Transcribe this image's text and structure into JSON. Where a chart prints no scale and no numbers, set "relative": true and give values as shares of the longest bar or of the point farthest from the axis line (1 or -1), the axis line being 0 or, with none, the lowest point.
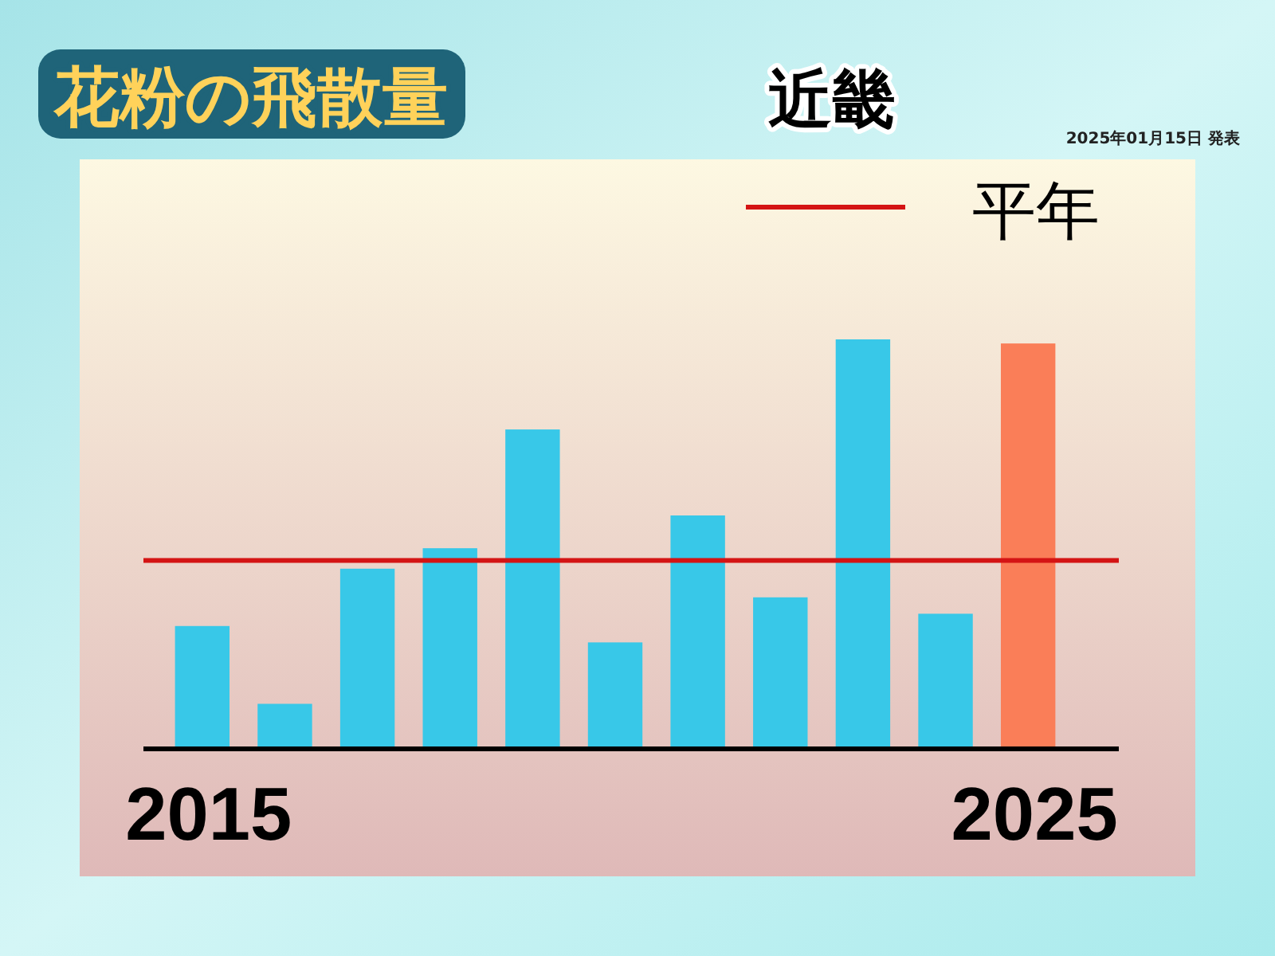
{
  "chart_data": {
    "type": "bar",
    "title": "花粉の飛散量",
    "subtitle": "近畿",
    "annotations": [
      "2025年01月15日 発表"
    ],
    "categories": [
      "2015",
      null,
      null,
      null,
      null,
      null,
      null,
      null,
      null,
      null,
      "2025"
    ],
    "values": [
      0.3,
      0.11,
      0.44,
      0.49,
      0.78,
      0.26,
      0.57,
      0.37,
      1,
      0.33,
      0.99
    ],
    "colors": [
      "#38c8e8",
      "#38c8e8",
      "#38c8e8",
      "#38c8e8",
      "#38c8e8",
      "#38c8e8",
      "#38c8e8",
      "#38c8e8",
      "#38c8e8",
      "#38c8e8",
      "#fa7e58"
    ],
    "relative": true,
    "ref_lines": [
      {
        "axis": "y",
        "value": 0.46,
        "label": "平年",
        "color": "#d41414"
      }
    ],
    "legend": "top right"
  }
}
